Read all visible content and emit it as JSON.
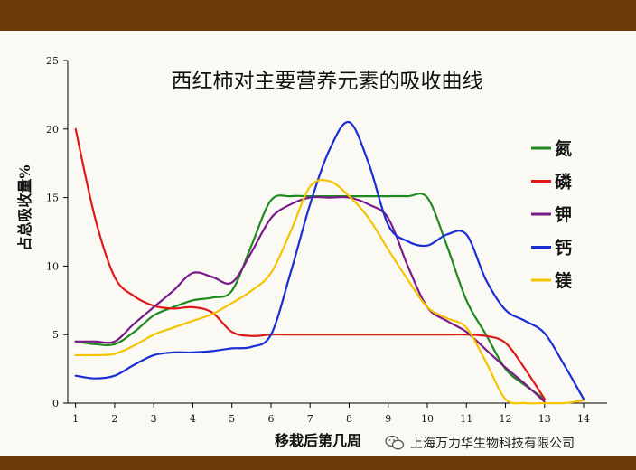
{
  "chart_data": {
    "type": "line",
    "title": "西红柿对主要营养元素的吸收曲线",
    "xlabel": "移栽后第几周",
    "ylabel": "占总吸收量%",
    "x": [
      1,
      1.5,
      2,
      2.5,
      3,
      3.5,
      4,
      4.5,
      5,
      5.5,
      6,
      6.5,
      7,
      7.5,
      8,
      8.5,
      9,
      9.5,
      10,
      10.5,
      11,
      11.5,
      12,
      12.5,
      13,
      13.5,
      14
    ],
    "x_ticks": [
      "1",
      "2",
      "3",
      "4",
      "5",
      "6",
      "7",
      "8",
      "9",
      "10",
      "11",
      "12",
      "13",
      "14"
    ],
    "y_ticks": [
      "0",
      "5",
      "10",
      "15",
      "20",
      "25"
    ],
    "ylim": [
      0,
      25
    ],
    "xlim": [
      0.8,
      14.6
    ],
    "grid": false,
    "legend_position": "right",
    "series": [
      {
        "name": "氮",
        "color": "#1e8a1e",
        "values": [
          4.5,
          4.3,
          4.3,
          5.2,
          6.4,
          7.0,
          7.5,
          7.7,
          8.2,
          11.5,
          14.8,
          15.1,
          15.1,
          15.1,
          15.1,
          15.1,
          15.1,
          15.1,
          15.0,
          11.5,
          7.5,
          5.0,
          2.5,
          1.3,
          0.3,
          null,
          null
        ]
      },
      {
        "name": "磷",
        "color": "#e01818",
        "values": [
          20.0,
          13.5,
          9.2,
          7.8,
          7.1,
          6.9,
          7.0,
          6.6,
          5.2,
          4.9,
          5.0,
          5.0,
          5.0,
          5.0,
          5.0,
          5.0,
          5.0,
          5.0,
          5.0,
          5.0,
          5.0,
          4.9,
          4.4,
          2.5,
          0.3,
          null,
          null
        ]
      },
      {
        "name": "钾",
        "color": "#7a1a8a",
        "values": [
          4.5,
          4.5,
          4.5,
          5.8,
          7.0,
          8.2,
          9.5,
          9.2,
          8.8,
          11.0,
          13.5,
          14.5,
          15.0,
          15.0,
          15.0,
          14.5,
          13.5,
          10.0,
          7.0,
          6.0,
          5.2,
          3.9,
          2.6,
          1.4,
          0.1,
          null,
          null
        ]
      },
      {
        "name": "钙",
        "color": "#1a2ed6",
        "values": [
          2.0,
          1.8,
          2.0,
          2.8,
          3.5,
          3.7,
          3.7,
          3.8,
          4.0,
          4.1,
          5.0,
          9.5,
          14.5,
          18.5,
          20.5,
          17.5,
          13.0,
          11.8,
          11.5,
          12.3,
          12.3,
          9.0,
          6.8,
          6.0,
          5.1,
          2.8,
          0.3
        ]
      },
      {
        "name": "镁",
        "color": "#f5c400",
        "values": [
          3.5,
          3.5,
          3.6,
          4.2,
          5.0,
          5.5,
          6.0,
          6.5,
          7.3,
          8.2,
          9.5,
          12.5,
          15.8,
          16.2,
          15.1,
          13.5,
          11.2,
          9.0,
          7.0,
          6.2,
          5.5,
          3.0,
          0.3,
          0.0,
          0.0,
          0.0,
          0.2
        ]
      }
    ]
  }
}
